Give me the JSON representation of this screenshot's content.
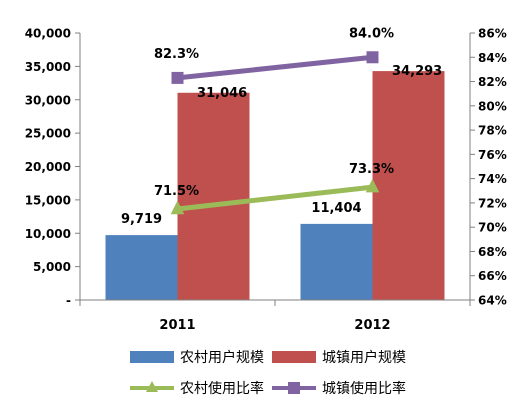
{
  "chart_data": {
    "type": "bar",
    "categories": [
      "2011",
      "2012"
    ],
    "series": [
      {
        "name": "农村用户规模",
        "kind": "bar",
        "axis": "left",
        "color": "#4f81bd",
        "values": [
          9719,
          11404
        ],
        "labels": [
          "9,719",
          "11,404"
        ]
      },
      {
        "name": "城镇用户规模",
        "kind": "bar",
        "axis": "left",
        "color": "#c0504d",
        "values": [
          31046,
          34293
        ],
        "labels": [
          "31,046",
          "34,293"
        ]
      },
      {
        "name": "农村使用比率",
        "kind": "line",
        "axis": "right",
        "color": "#9bbb59",
        "marker": "triangle",
        "values": [
          71.5,
          73.3
        ],
        "labels": [
          "71.5%",
          "73.3%"
        ]
      },
      {
        "name": "城镇使用比率",
        "kind": "line",
        "axis": "right",
        "color": "#8064a2",
        "marker": "square",
        "values": [
          82.3,
          84.0
        ],
        "labels": [
          "82.3%",
          "84.0%"
        ]
      }
    ],
    "y_left": {
      "min": 0,
      "max": 40000,
      "step": 5000,
      "ticks": [
        "-",
        "5,000",
        "10,000",
        "15,000",
        "20,000",
        "25,000",
        "30,000",
        "35,000",
        "40,000"
      ]
    },
    "y_right": {
      "min": 64,
      "max": 86,
      "step": 2,
      "ticks": [
        "64%",
        "66%",
        "68%",
        "70%",
        "72%",
        "74%",
        "76%",
        "78%",
        "80%",
        "82%",
        "84%",
        "86%"
      ]
    },
    "grid": false,
    "legend_position": "bottom"
  }
}
